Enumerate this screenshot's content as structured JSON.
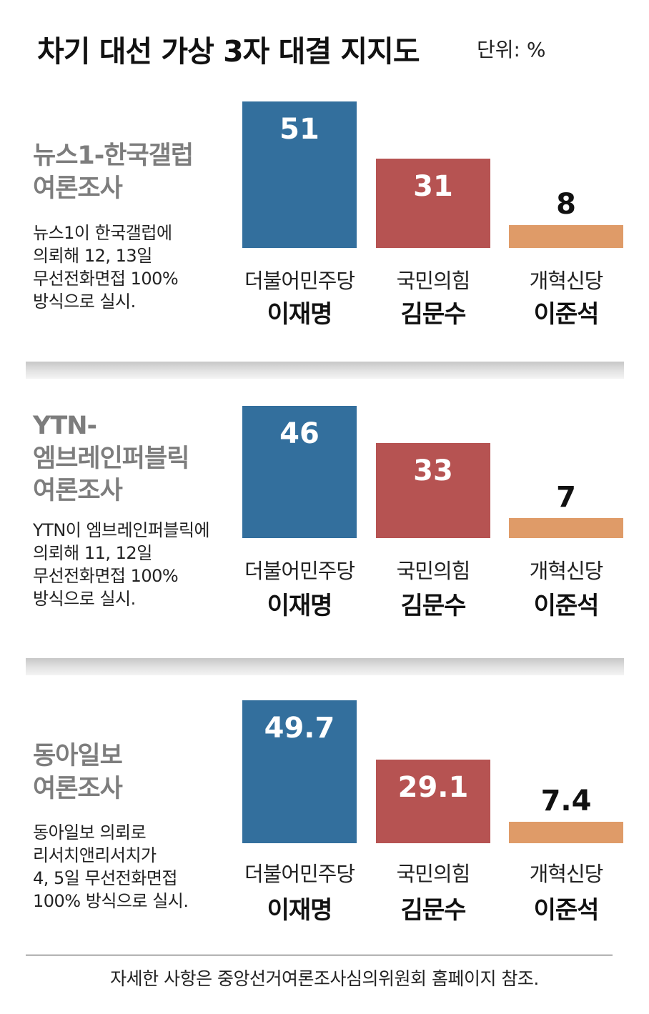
{
  "header": {
    "title": "차기 대선 가상 3자 대결 지지도",
    "unit": "단위: %"
  },
  "chart_data": [
    {
      "type": "bar",
      "title": "뉴스1-한국갤럽\n여론조사",
      "subtitle": "뉴스1이 한국갤럽에\n의뢰해 12, 13일\n무선전화면접 100%\n방식으로 실시.",
      "categories": [
        "더불어민주당",
        "국민의힘",
        "개혁신당"
      ],
      "candidates": [
        "이재명",
        "김문수",
        "이준석"
      ],
      "values": [
        51,
        31,
        8
      ],
      "value_labels": [
        "51",
        "31",
        "8"
      ],
      "colors": [
        "#336f9d",
        "#b65352",
        "#df9b68"
      ]
    },
    {
      "type": "bar",
      "title": "YTN-\n엠브레인퍼블릭\n여론조사",
      "subtitle": "YTN이 엠브레인퍼블릭에\n의뢰해 11, 12일\n무선전화면접 100%\n방식으로 실시.",
      "categories": [
        "더불어민주당",
        "국민의힘",
        "개혁신당"
      ],
      "candidates": [
        "이재명",
        "김문수",
        "이준석"
      ],
      "values": [
        46,
        33,
        7
      ],
      "value_labels": [
        "46",
        "33",
        "7"
      ],
      "colors": [
        "#336f9d",
        "#b65352",
        "#df9b68"
      ]
    },
    {
      "type": "bar",
      "title": "동아일보\n여론조사",
      "subtitle": "동아일보 의뢰로\n리서치앤리서치가\n4, 5일 무선전화면접\n100% 방식으로 실시.",
      "categories": [
        "더불어민주당",
        "국민의힘",
        "개혁신당"
      ],
      "candidates": [
        "이재명",
        "김문수",
        "이준석"
      ],
      "values": [
        49.7,
        29.1,
        7.4
      ],
      "value_labels": [
        "49.7",
        "29.1",
        "7.4"
      ],
      "colors": [
        "#336f9d",
        "#b65352",
        "#df9b68"
      ]
    }
  ],
  "footer": {
    "note": "자세한 사항은 중앙선거여론조사심의위원회 홈페이지 참조."
  }
}
